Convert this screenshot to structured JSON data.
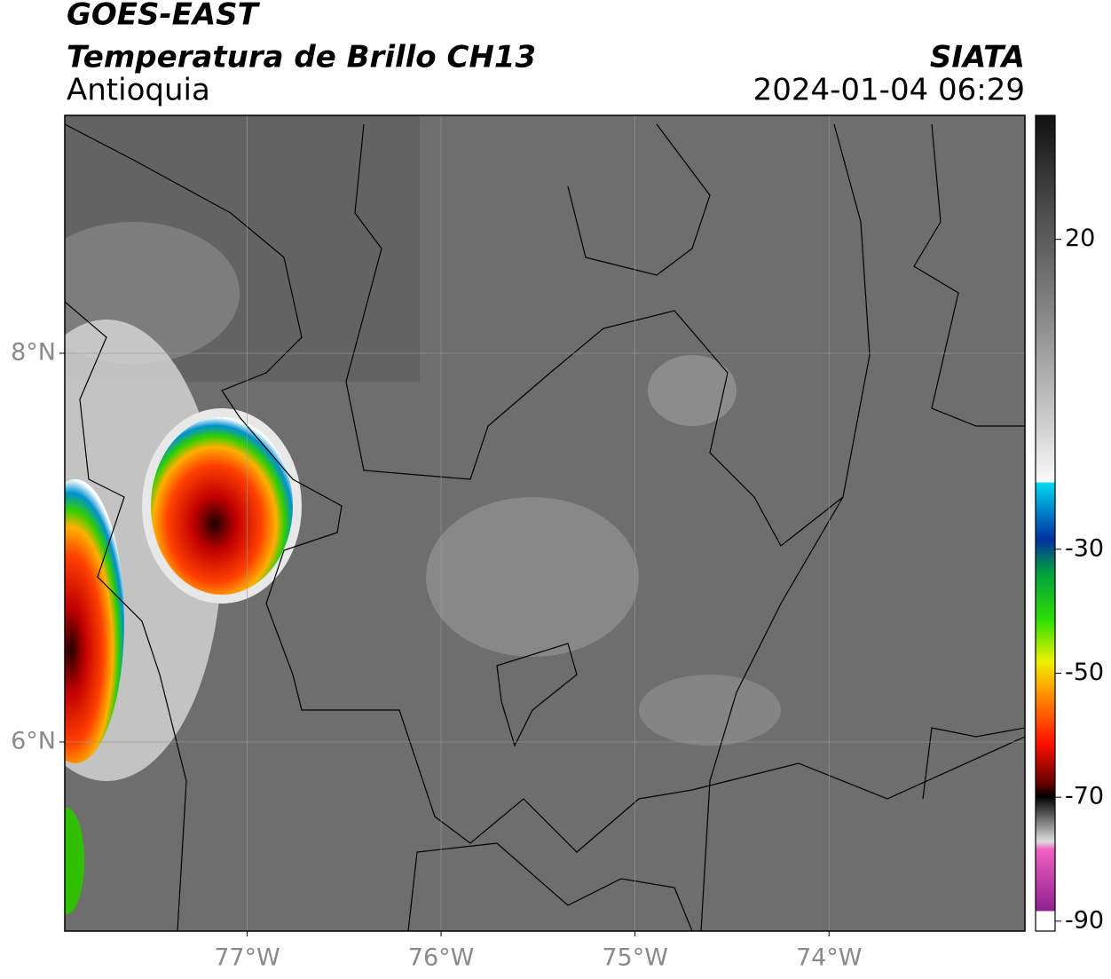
{
  "header": {
    "title": "GOES-EAST",
    "subtitle": "Temperatura de Brillo CH13",
    "region": "Antioquia",
    "source": "SIATA",
    "datetime": "2024-01-04 06:29"
  },
  "map": {
    "xlim": [
      -77.94,
      -72.99
    ],
    "ylim": [
      5.027,
      9.224
    ],
    "xticks": [
      {
        "value": -77,
        "label": "77°W"
      },
      {
        "value": -76,
        "label": "76°W"
      },
      {
        "value": -75,
        "label": "75°W"
      },
      {
        "value": -74,
        "label": "74°W"
      }
    ],
    "yticks": [
      {
        "value": 8,
        "label": "8°N"
      },
      {
        "value": 6,
        "label": "6°N"
      }
    ]
  },
  "colorbar": {
    "limits": [
      -91.6,
      40
    ],
    "ticks": [
      20,
      -30,
      -50,
      -70,
      -90
    ]
  }
}
